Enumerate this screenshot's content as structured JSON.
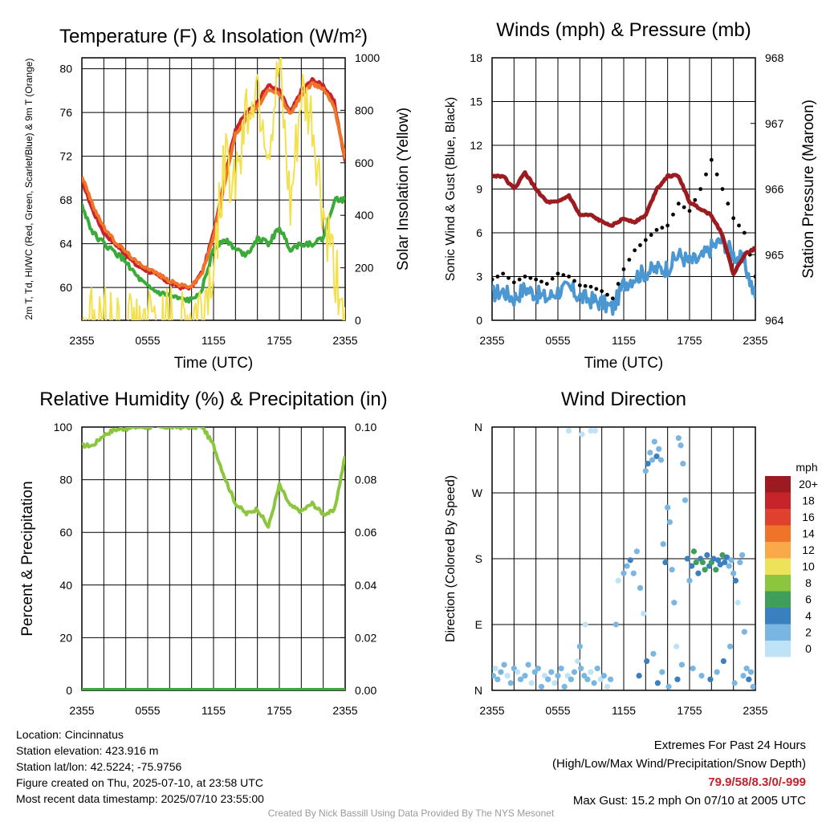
{
  "chart_data": [
    {
      "type": "line",
      "title": "Temperature (F) & Insolation (W/m²)",
      "xlabel": "Time (UTC)",
      "ylabel_left": "2m T, Td, HI/WC (Red, Green, Scarlet/Blue) & 9m T (Orange)",
      "ylabel_right": "Solar Insolation (Yellow)",
      "x_ticks": [
        "2355",
        "0555",
        "1155",
        "1755",
        "2355"
      ],
      "y_left_ticks": [
        "60",
        "64",
        "68",
        "72",
        "76",
        "80"
      ],
      "y_right_ticks": [
        "0",
        "200",
        "400",
        "600",
        "800",
        "1000"
      ],
      "ylim_left": [
        57,
        81
      ],
      "ylim_right": [
        0,
        1000
      ],
      "x": [
        0,
        1,
        2,
        3,
        4,
        5,
        6,
        7,
        8,
        9,
        10,
        11,
        12,
        13,
        14,
        15,
        16,
        17,
        18,
        19,
        20,
        21,
        22,
        23,
        24
      ],
      "series": [
        {
          "name": "2m T",
          "color": "#c7232b",
          "axis": "left",
          "values": [
            69.8,
            67,
            65,
            64,
            63,
            62,
            61.5,
            61,
            60.4,
            60,
            60,
            61.5,
            65,
            70,
            74.5,
            76,
            77,
            78.5,
            78,
            76,
            78,
            79,
            78.5,
            77,
            71.5
          ]
        },
        {
          "name": "9m T",
          "color": "#f0732a",
          "axis": "left",
          "values": [
            70.2,
            67.5,
            65.5,
            64.2,
            63.3,
            62.3,
            61.8,
            61.2,
            60.6,
            60.2,
            60.1,
            61.4,
            64.6,
            69.5,
            74,
            75.5,
            76.5,
            78,
            77.7,
            75.8,
            77.6,
            78.6,
            78.2,
            76.6,
            71.8
          ]
        },
        {
          "name": "Td",
          "color": "#3aab38",
          "axis": "left",
          "values": [
            67.5,
            65,
            64,
            63.2,
            62.4,
            61,
            60,
            59.5,
            59.2,
            58.9,
            58.8,
            60,
            63.5,
            64.5,
            63.5,
            63,
            64.5,
            64,
            65.5,
            63.5,
            64,
            64,
            64.5,
            68,
            68
          ]
        },
        {
          "name": "Solar Insolation",
          "color": "#f3e04d",
          "axis": "right",
          "values": [
            10,
            5,
            2,
            0,
            0,
            0,
            0,
            0,
            0,
            0,
            5,
            50,
            200,
            600,
            550,
            800,
            900,
            650,
            950,
            400,
            850,
            750,
            400,
            200,
            50
          ]
        }
      ]
    },
    {
      "type": "line",
      "title": "Winds (mph) & Pressure (mb)",
      "xlabel": "Time (UTC)",
      "ylabel_left": "Sonic Wind & Gust (Blue, Black)",
      "ylabel_right": "Station Pressure (Maroon)",
      "x_ticks": [
        "2355",
        "0555",
        "1155",
        "1755",
        "2355"
      ],
      "y_left_ticks": [
        "0",
        "3",
        "6",
        "9",
        "12",
        "15",
        "18"
      ],
      "y_right_ticks": [
        "964",
        "965",
        "966",
        "967",
        "968"
      ],
      "ylim_left": [
        0,
        18
      ],
      "ylim_right": [
        964,
        968
      ],
      "x": [
        0,
        1,
        2,
        3,
        4,
        5,
        6,
        7,
        8,
        9,
        10,
        11,
        12,
        13,
        14,
        15,
        16,
        17,
        18,
        19,
        20,
        21,
        22,
        23,
        24
      ],
      "series": [
        {
          "name": "Sonic Wind",
          "color": "#4b97d2",
          "axis": "left",
          "values": [
            1.8,
            2,
            1.5,
            2.2,
            1.8,
            1.5,
            2,
            2.2,
            1.6,
            1.4,
            1.2,
            0.8,
            2.5,
            3,
            3.3,
            3.5,
            3.6,
            4.5,
            4,
            4.2,
            5,
            5.5,
            4.5,
            4,
            1.5
          ]
        },
        {
          "name": "Gust",
          "color": "#000000",
          "axis": "left",
          "values": [
            2.8,
            3.2,
            2.6,
            3,
            2.8,
            2.5,
            3.2,
            3,
            2.4,
            2.3,
            2,
            1.5,
            3.5,
            4.8,
            5.5,
            6.2,
            6.5,
            8,
            7.5,
            9,
            11,
            9,
            7,
            6,
            3
          ]
        },
        {
          "name": "Station Pressure",
          "color": "#9c1b21",
          "axis": "right",
          "values": [
            966.2,
            966.2,
            966.0,
            966.25,
            966.0,
            965.8,
            965.8,
            965.9,
            965.6,
            965.6,
            965.5,
            965.45,
            965.55,
            965.5,
            965.6,
            966.0,
            966.2,
            966.2,
            965.8,
            965.7,
            965.6,
            965.3,
            964.7,
            965.0,
            965.1
          ]
        }
      ]
    },
    {
      "type": "line",
      "title": "Relative Humidity (%) & Precipitation (in)",
      "xlabel": "",
      "ylabel_left": "Percent & Precipitation",
      "x_ticks": [
        "2355",
        "0555",
        "1155",
        "1755",
        "2355"
      ],
      "y_left_ticks": [
        "0",
        "20",
        "40",
        "60",
        "80",
        "100"
      ],
      "y_right_ticks": [
        "0.00",
        "0.02",
        "0.04",
        "0.06",
        "0.08",
        "0.10"
      ],
      "ylim_left": [
        0,
        100
      ],
      "ylim_right": [
        0,
        0.1
      ],
      "x": [
        0,
        1,
        2,
        3,
        4,
        5,
        6,
        7,
        8,
        9,
        10,
        11,
        12,
        13,
        14,
        15,
        16,
        17,
        18,
        19,
        20,
        21,
        22,
        23,
        24
      ],
      "series": [
        {
          "name": "Relative Humidity",
          "color": "#8cc63e",
          "axis": "left",
          "values": [
            93,
            93,
            97,
            99,
            99.5,
            100,
            100,
            100,
            100,
            100,
            100,
            100,
            93,
            81,
            71,
            67,
            69,
            62,
            78,
            70,
            68,
            71,
            67,
            68,
            89
          ]
        },
        {
          "name": "Precipitation",
          "color": "#3aab38",
          "axis": "right",
          "values": [
            0,
            0,
            0,
            0,
            0,
            0,
            0,
            0,
            0,
            0,
            0,
            0,
            0,
            0,
            0,
            0,
            0,
            0,
            0,
            0,
            0,
            0,
            0,
            0,
            0
          ]
        }
      ]
    },
    {
      "type": "scatter",
      "title": "Wind Direction",
      "xlabel": "",
      "ylabel_left": "Direction (Colored By Speed)",
      "x_ticks": [
        "2355",
        "0555",
        "1155",
        "1755",
        "2355"
      ],
      "y_left_ticks": [
        "N",
        "E",
        "S",
        "W",
        "N"
      ],
      "ylim_left": [
        0,
        360
      ],
      "legend": {
        "title": "mph",
        "position": "right",
        "labels": [
          "20+",
          "18",
          "16",
          "14",
          "12",
          "10",
          "8",
          "6",
          "4",
          "2",
          "0"
        ],
        "colors": [
          "#9c1b21",
          "#c7232b",
          "#e0402e",
          "#f0732a",
          "#f9a94a",
          "#ede35a",
          "#8cc63e",
          "#3f9e5a",
          "#3a7fbe",
          "#79b6e2",
          "#bfe3f6"
        ]
      },
      "points": [
        [
          0.1,
          20
        ],
        [
          0.3,
          30
        ],
        [
          0.5,
          15
        ],
        [
          0.8,
          25
        ],
        [
          1.1,
          35
        ],
        [
          1.4,
          20
        ],
        [
          1.7,
          10
        ],
        [
          2.0,
          30
        ],
        [
          2.3,
          25
        ],
        [
          2.6,
          15
        ],
        [
          3.0,
          20
        ],
        [
          3.3,
          35
        ],
        [
          3.6,
          10
        ],
        [
          3.9,
          25
        ],
        [
          4.2,
          30
        ],
        [
          4.5,
          5
        ],
        [
          4.8,
          20
        ],
        [
          5.1,
          15
        ],
        [
          5.4,
          25
        ],
        [
          5.7,
          10
        ],
        [
          6.0,
          20
        ],
        [
          6.3,
          30
        ],
        [
          6.6,
          5
        ],
        [
          6.9,
          20
        ],
        [
          7.2,
          15
        ],
        [
          7.5,
          25
        ],
        [
          7.8,
          40
        ],
        [
          8.1,
          30
        ],
        [
          8.4,
          20
        ],
        [
          8.7,
          15
        ],
        [
          9.0,
          25
        ],
        [
          9.3,
          10
        ],
        [
          9.6,
          30
        ],
        [
          9.9,
          15
        ],
        [
          10.2,
          20
        ],
        [
          10.5,
          5
        ],
        [
          10.8,
          15
        ],
        [
          8.0,
          60
        ],
        [
          8.5,
          90
        ],
        [
          9.0,
          355
        ],
        [
          7.0,
          355
        ],
        [
          8.2,
          350
        ],
        [
          9.4,
          355
        ],
        [
          11.3,
          90
        ],
        [
          11.5,
          150
        ],
        [
          12.0,
          160
        ],
        [
          12.3,
          170
        ],
        [
          12.6,
          178
        ],
        [
          12.9,
          160
        ],
        [
          13.2,
          190
        ],
        [
          13.5,
          140
        ],
        [
          13.8,
          105
        ],
        [
          14.0,
          300
        ],
        [
          14.2,
          310
        ],
        [
          14.4,
          325
        ],
        [
          14.6,
          315
        ],
        [
          14.8,
          340
        ],
        [
          15.0,
          320
        ],
        [
          15.2,
          330
        ],
        [
          15.4,
          315
        ],
        [
          15.6,
          200
        ],
        [
          15.8,
          175
        ],
        [
          16.0,
          250
        ],
        [
          16.2,
          230
        ],
        [
          16.4,
          165
        ],
        [
          16.6,
          120
        ],
        [
          16.8,
          60
        ],
        [
          17.0,
          345
        ],
        [
          17.2,
          335
        ],
        [
          17.4,
          310
        ],
        [
          17.6,
          260
        ],
        [
          17.8,
          180
        ],
        [
          18.0,
          150
        ],
        [
          18.2,
          170
        ],
        [
          18.4,
          190
        ],
        [
          18.6,
          175
        ],
        [
          18.8,
          160
        ],
        [
          19.0,
          180
        ],
        [
          19.2,
          175
        ],
        [
          19.4,
          165
        ],
        [
          19.6,
          185
        ],
        [
          19.8,
          170
        ],
        [
          20.0,
          175
        ],
        [
          20.2,
          180
        ],
        [
          20.4,
          165
        ],
        [
          20.6,
          178
        ],
        [
          20.8,
          172
        ],
        [
          21.0,
          185
        ],
        [
          21.2,
          175
        ],
        [
          21.4,
          182
        ],
        [
          21.6,
          170
        ],
        [
          21.8,
          178
        ],
        [
          22.0,
          160
        ],
        [
          22.2,
          150
        ],
        [
          22.4,
          120
        ],
        [
          22.6,
          175
        ],
        [
          22.8,
          185
        ],
        [
          23.0,
          80
        ],
        [
          23.2,
          30
        ],
        [
          23.4,
          15
        ],
        [
          23.6,
          25
        ],
        [
          23.8,
          5
        ],
        [
          13.4,
          20
        ],
        [
          14.1,
          40
        ],
        [
          14.7,
          50
        ],
        [
          15.1,
          10
        ],
        [
          15.5,
          25
        ],
        [
          16.1,
          5
        ],
        [
          16.9,
          15
        ],
        [
          17.3,
          35
        ],
        [
          18.3,
          30
        ],
        [
          19.1,
          20
        ],
        [
          19.9,
          15
        ],
        [
          20.5,
          25
        ],
        [
          21.1,
          40
        ],
        [
          21.7,
          60
        ],
        [
          22.1,
          10
        ],
        [
          22.9,
          20
        ]
      ],
      "speeds": [
        2,
        1,
        2,
        3,
        2,
        1,
        2,
        3,
        1,
        2,
        3,
        2,
        1,
        2,
        3,
        2,
        1,
        2,
        3,
        1,
        2,
        3,
        2,
        1,
        2,
        3,
        1,
        2,
        3,
        2,
        1,
        2,
        3,
        1,
        2,
        1,
        2,
        2,
        1,
        1,
        1,
        1,
        1,
        2,
        1,
        2,
        3,
        4,
        2,
        3,
        2,
        1,
        3,
        4,
        3,
        2,
        3,
        4,
        3,
        2,
        3,
        4,
        3,
        2,
        3,
        2,
        1,
        2,
        3,
        2,
        3,
        4,
        3,
        5,
        6,
        7,
        4,
        5,
        6,
        7,
        5,
        4,
        6,
        5,
        7,
        5,
        4,
        6,
        5,
        4,
        3,
        2,
        2,
        5,
        1,
        2,
        3,
        2,
        3,
        4,
        2,
        3,
        4,
        5,
        3,
        4,
        2,
        3,
        4,
        3,
        2,
        3,
        4,
        2,
        5,
        2,
        3,
        3
      ]
    }
  ],
  "info": {
    "location": "Location: Cincinnatus",
    "elevation": "Station elevation: 423.916 m",
    "latlon": "Station lat/lon: 42.5224; -75.9756",
    "created": "Figure created on Thu, 2025-07-10, at 23:58 UTC",
    "recent": "Most recent data timestamp: 2025/07/10 23:55:00"
  },
  "extremes": {
    "title": "Extremes For Past 24 Hours",
    "subtitle": "(High/Low/Max Wind/Precipitation/Snow Depth)",
    "values": "79.9/58/8.3/0/-999",
    "gust": "Max Gust: 15.2 mph On 07/10 at 2005 UTC"
  },
  "credit": "Created By Nick Bassill Using Data Provided By The NYS Mesonet"
}
